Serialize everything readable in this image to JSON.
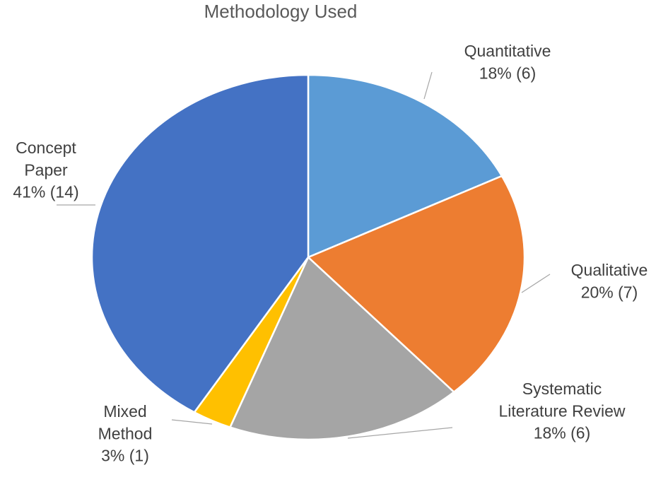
{
  "chart_data": {
    "type": "pie",
    "title": "Methodology Used",
    "start_angle_deg": 0,
    "direction": "clockwise",
    "slices": [
      {
        "key": "quantitative",
        "label": "Quantitative",
        "percent_label": "18% (6)",
        "value": 6,
        "color": "#5B9BD5"
      },
      {
        "key": "qualitative",
        "label": "Qualitative",
        "percent_label": "20% (7)",
        "value": 7,
        "color": "#ED7D31"
      },
      {
        "key": "systematic-literature-review",
        "label": "Systematic Literature Review",
        "percent_label": "18% (6)",
        "value": 6,
        "color": "#A5A5A5"
      },
      {
        "key": "mixed-method",
        "label": "Mixed Method",
        "percent_label": "3% (1)",
        "value": 1,
        "color": "#FFC000"
      },
      {
        "key": "concept-paper",
        "label": "Concept Paper",
        "percent_label": "41% (14)",
        "value": 14,
        "color": "#4472C4"
      }
    ]
  }
}
